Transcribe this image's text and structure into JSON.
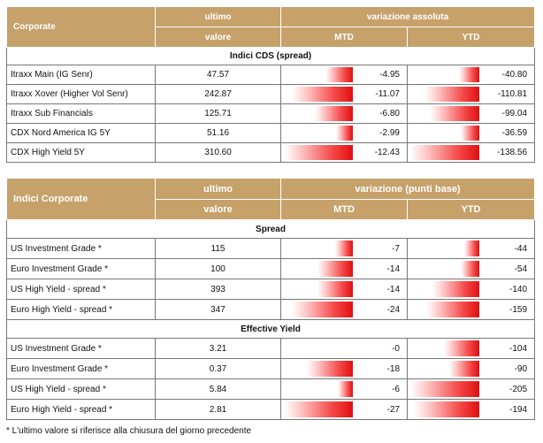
{
  "cds": {
    "header": {
      "name": "Corporate",
      "last_line1": "ultimo",
      "last_line2": "valore",
      "change": "variazione assoluta",
      "mtd": "MTD",
      "ytd": "YTD"
    },
    "section": "Indici CDS (spread)",
    "mtd_scale": 12.43,
    "ytd_scale": 138.56,
    "rows": [
      {
        "name": "Itraxx Main (IG Senr)",
        "last": "47.57",
        "mtd": "-4.95",
        "mtd_value": -4.95,
        "ytd": "-40.80",
        "ytd_value": -40.8
      },
      {
        "name": "Itraxx Xover (Higher Vol Senr)",
        "last": "242.87",
        "mtd": "-11.07",
        "mtd_value": -11.07,
        "ytd": "-110.81",
        "ytd_value": -110.81
      },
      {
        "name": "Itraxx Sub Financials",
        "last": "125.71",
        "mtd": "-6.80",
        "mtd_value": -6.8,
        "ytd": "-99.04",
        "ytd_value": -99.04
      },
      {
        "name": "CDX Nord America IG 5Y",
        "last": "51.16",
        "mtd": "-2.99",
        "mtd_value": -2.99,
        "ytd": "-36.59",
        "ytd_value": -36.59
      },
      {
        "name": "CDX High Yield 5Y",
        "last": "310.60",
        "mtd": "-12.43",
        "mtd_value": -12.43,
        "ytd": "-138.56",
        "ytd_value": -138.56
      }
    ]
  },
  "indices": {
    "header": {
      "name": "Indici Corporate",
      "last_line1": "ultimo",
      "last_line2": "valore",
      "change": "variazione (punti base)",
      "mtd": "MTD",
      "ytd": "YTD"
    },
    "mtd_scale": 27,
    "ytd_scale": 205,
    "spread": {
      "title": "Spread",
      "rows": [
        {
          "name": "US Investment Grade *",
          "last": "115",
          "mtd": "-7",
          "mtd_value": -7,
          "ytd": "-44",
          "ytd_value": -44
        },
        {
          "name": "Euro Investment Grade *",
          "last": "100",
          "mtd": "-14",
          "mtd_value": -14,
          "ytd": "-54",
          "ytd_value": -54
        },
        {
          "name": "US High Yield - spread *",
          "last": "393",
          "mtd": "-14",
          "mtd_value": -14,
          "ytd": "-140",
          "ytd_value": -140
        },
        {
          "name": "Euro High Yield - spread *",
          "last": "347",
          "mtd": "-24",
          "mtd_value": -24,
          "ytd": "-159",
          "ytd_value": -159
        }
      ]
    },
    "yield": {
      "title": "Effective Yield",
      "rows": [
        {
          "name": "US Investment Grade *",
          "last": "3.21",
          "mtd": "-0",
          "mtd_value": 0,
          "ytd": "-104",
          "ytd_value": -104
        },
        {
          "name": "Euro Investment Grade *",
          "last": "0.37",
          "mtd": "-18",
          "mtd_value": -18,
          "ytd": "-90",
          "ytd_value": -90
        },
        {
          "name": "US High Yield - spread *",
          "last": "5.84",
          "mtd": "-6",
          "mtd_value": -6,
          "ytd": "-205",
          "ytd_value": -205
        },
        {
          "name": "Euro High Yield - spread *",
          "last": "2.81",
          "mtd": "-27",
          "mtd_value": -27,
          "ytd": "-194",
          "ytd_value": -194
        }
      ]
    }
  },
  "footnote": "* L'ultimo valore si riferisce alla chiusura del giorno precedente",
  "colors": {
    "header_bg": "#c6a16a",
    "bar_red": "#e01010"
  }
}
